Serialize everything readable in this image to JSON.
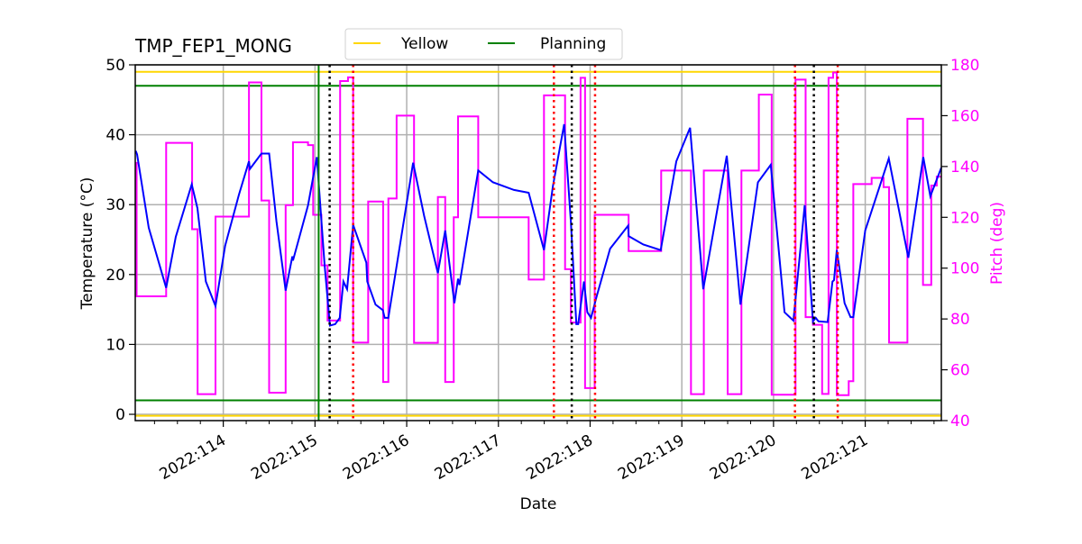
{
  "chart_data": {
    "type": "line",
    "title": "TMP_FEP1_MONG",
    "xlabel": "Date",
    "ylabel": "Temperature ($^\\circ$C)",
    "ylabel_display": "Temperature (°C)",
    "y2label": "Pitch (deg)",
    "xlim": [
      113.04,
      121.83
    ],
    "ylim": [
      -0.9,
      50
    ],
    "y2lim": [
      40,
      180
    ],
    "grid": true,
    "legend_placement": "top-center",
    "x_ticks": [
      {
        "value": 114,
        "label": "2022:114"
      },
      {
        "value": 115,
        "label": "2022:115"
      },
      {
        "value": 116,
        "label": "2022:116"
      },
      {
        "value": 117,
        "label": "2022:117"
      },
      {
        "value": 118,
        "label": "2022:118"
      },
      {
        "value": 119,
        "label": "2022:119"
      },
      {
        "value": 120,
        "label": "2022:120"
      },
      {
        "value": 121,
        "label": "2022:121"
      }
    ],
    "y_ticks": [
      0,
      10,
      20,
      30,
      40,
      50
    ],
    "y2_ticks": [
      40,
      60,
      80,
      100,
      120,
      140,
      160,
      180
    ],
    "colors": {
      "temperature": "#0000ff",
      "pitch": "#ff00ff",
      "yellow": "#ffd700",
      "planning": "#008000",
      "red_marker": "#ff0000",
      "black_marker": "#000000",
      "grid": "#b0b0b0"
    },
    "legend": [
      {
        "label": "Yellow",
        "color": "#ffd700"
      },
      {
        "label": "Planning",
        "color": "#008000"
      }
    ],
    "limits": {
      "yellow": [
        49,
        -0.2
      ],
      "planning": [
        47,
        2
      ]
    },
    "vertical_markers": {
      "planning": [
        115.04
      ],
      "black_dotted": [
        115.16,
        117.8,
        120.44
      ],
      "red_dotted": [
        115.416,
        117.605,
        118.054,
        120.234,
        120.7
      ]
    },
    "temperature": [
      [
        113.045,
        37.7
      ],
      [
        113.06,
        37.2
      ],
      [
        113.187,
        26.7
      ],
      [
        113.377,
        18.1
      ],
      [
        113.482,
        25.4
      ],
      [
        113.656,
        32.9
      ],
      [
        113.718,
        29.5
      ],
      [
        113.81,
        19.0
      ],
      [
        113.915,
        15.5
      ],
      [
        114.02,
        24.1
      ],
      [
        114.17,
        31.4
      ],
      [
        114.28,
        36.2
      ],
      [
        114.29,
        35.1
      ],
      [
        114.416,
        37.3
      ],
      [
        114.5,
        37.3
      ],
      [
        114.58,
        27.6
      ],
      [
        114.68,
        17.7
      ],
      [
        114.753,
        22.6
      ],
      [
        114.76,
        22.0
      ],
      [
        114.924,
        29.9
      ],
      [
        115.02,
        36.8
      ],
      [
        115.104,
        21.5
      ],
      [
        115.163,
        12.7
      ],
      [
        115.22,
        12.9
      ],
      [
        115.27,
        13.8
      ],
      [
        115.31,
        19.0
      ],
      [
        115.35,
        17.9
      ],
      [
        115.416,
        27.1
      ],
      [
        115.56,
        21.7
      ],
      [
        115.57,
        19.0
      ],
      [
        115.66,
        15.7
      ],
      [
        115.74,
        14.9
      ],
      [
        115.76,
        13.8
      ],
      [
        115.8,
        13.8
      ],
      [
        116.07,
        36.0
      ],
      [
        116.19,
        28.4
      ],
      [
        116.34,
        20.2
      ],
      [
        116.42,
        26.3
      ],
      [
        116.52,
        15.9
      ],
      [
        116.56,
        19.4
      ],
      [
        116.575,
        18.5
      ],
      [
        116.78,
        34.9
      ],
      [
        116.94,
        33.2
      ],
      [
        117.17,
        32.1
      ],
      [
        117.33,
        31.7
      ],
      [
        117.497,
        23.5
      ],
      [
        117.595,
        32.7
      ],
      [
        117.717,
        41.5
      ],
      [
        117.79,
        27.6
      ],
      [
        117.85,
        12.9
      ],
      [
        117.87,
        12.9
      ],
      [
        117.933,
        19.0
      ],
      [
        117.97,
        14.6
      ],
      [
        118.01,
        13.8
      ],
      [
        118.07,
        16.8
      ],
      [
        118.218,
        23.7
      ],
      [
        118.415,
        27.0
      ],
      [
        118.42,
        25.5
      ],
      [
        118.58,
        24.3
      ],
      [
        118.77,
        23.5
      ],
      [
        118.94,
        36.2
      ],
      [
        119.09,
        41.0
      ],
      [
        119.234,
        17.9
      ],
      [
        119.49,
        37.0
      ],
      [
        119.64,
        15.7
      ],
      [
        119.83,
        33.2
      ],
      [
        119.97,
        35.7
      ],
      [
        120.12,
        14.6
      ],
      [
        120.217,
        13.4
      ],
      [
        120.34,
        29.9
      ],
      [
        120.43,
        13.3
      ],
      [
        120.46,
        13.8
      ],
      [
        120.49,
        13.3
      ],
      [
        120.59,
        13.2
      ],
      [
        120.643,
        19.0
      ],
      [
        120.66,
        19.2
      ],
      [
        120.69,
        23.5
      ],
      [
        120.775,
        15.9
      ],
      [
        120.84,
        13.9
      ],
      [
        120.87,
        13.9
      ],
      [
        121.0,
        26.3
      ],
      [
        121.257,
        36.6
      ],
      [
        121.47,
        22.4
      ],
      [
        121.633,
        36.8
      ],
      [
        121.71,
        31.2
      ],
      [
        121.83,
        35.3
      ]
    ],
    "pitch_steps": [
      [
        113.04,
        141.4
      ],
      [
        113.055,
        88.9
      ],
      [
        113.377,
        149.3
      ],
      [
        113.66,
        115.3
      ],
      [
        113.72,
        50.4
      ],
      [
        113.915,
        120.3
      ],
      [
        114.28,
        173.1
      ],
      [
        114.416,
        126.6
      ],
      [
        114.5,
        51.0
      ],
      [
        114.68,
        124.8
      ],
      [
        114.76,
        149.5
      ],
      [
        114.924,
        148.4
      ],
      [
        114.98,
        121
      ],
      [
        115.07,
        101.1
      ],
      [
        115.137,
        79.4
      ],
      [
        115.274,
        173.6
      ],
      [
        115.36,
        175.1
      ],
      [
        115.416,
        70.7
      ],
      [
        115.58,
        126.2
      ],
      [
        115.743,
        55.2
      ],
      [
        115.8,
        127.4
      ],
      [
        115.89,
        160
      ],
      [
        116.08,
        70.6
      ],
      [
        116.34,
        128
      ],
      [
        116.42,
        55.2
      ],
      [
        116.513,
        120
      ],
      [
        116.56,
        159.7
      ],
      [
        116.78,
        120
      ],
      [
        117.33,
        95.5
      ],
      [
        117.497,
        168
      ],
      [
        117.727,
        99.6
      ],
      [
        117.79,
        78.6
      ],
      [
        117.896,
        174.9
      ],
      [
        117.945,
        52.8
      ],
      [
        118.05,
        121
      ],
      [
        118.42,
        106.7
      ],
      [
        118.775,
        138.4
      ],
      [
        119.1,
        50.4
      ],
      [
        119.24,
        138.4
      ],
      [
        119.5,
        50.4
      ],
      [
        119.65,
        138.4
      ],
      [
        119.84,
        168.3
      ],
      [
        119.98,
        50.2
      ],
      [
        120.24,
        174.2
      ],
      [
        120.35,
        80.7
      ],
      [
        120.43,
        77.7
      ],
      [
        120.53,
        50.5
      ],
      [
        120.6,
        174.9
      ],
      [
        120.65,
        177
      ],
      [
        120.69,
        50
      ],
      [
        120.82,
        55.5
      ],
      [
        120.87,
        133.1
      ],
      [
        121.07,
        135.5
      ],
      [
        121.2,
        131.9
      ],
      [
        121.26,
        70.7
      ],
      [
        121.46,
        158.8
      ],
      [
        121.63,
        93.4
      ],
      [
        121.72,
        132.5
      ],
      [
        121.78,
        136
      ],
      [
        121.83,
        136
      ]
    ]
  }
}
